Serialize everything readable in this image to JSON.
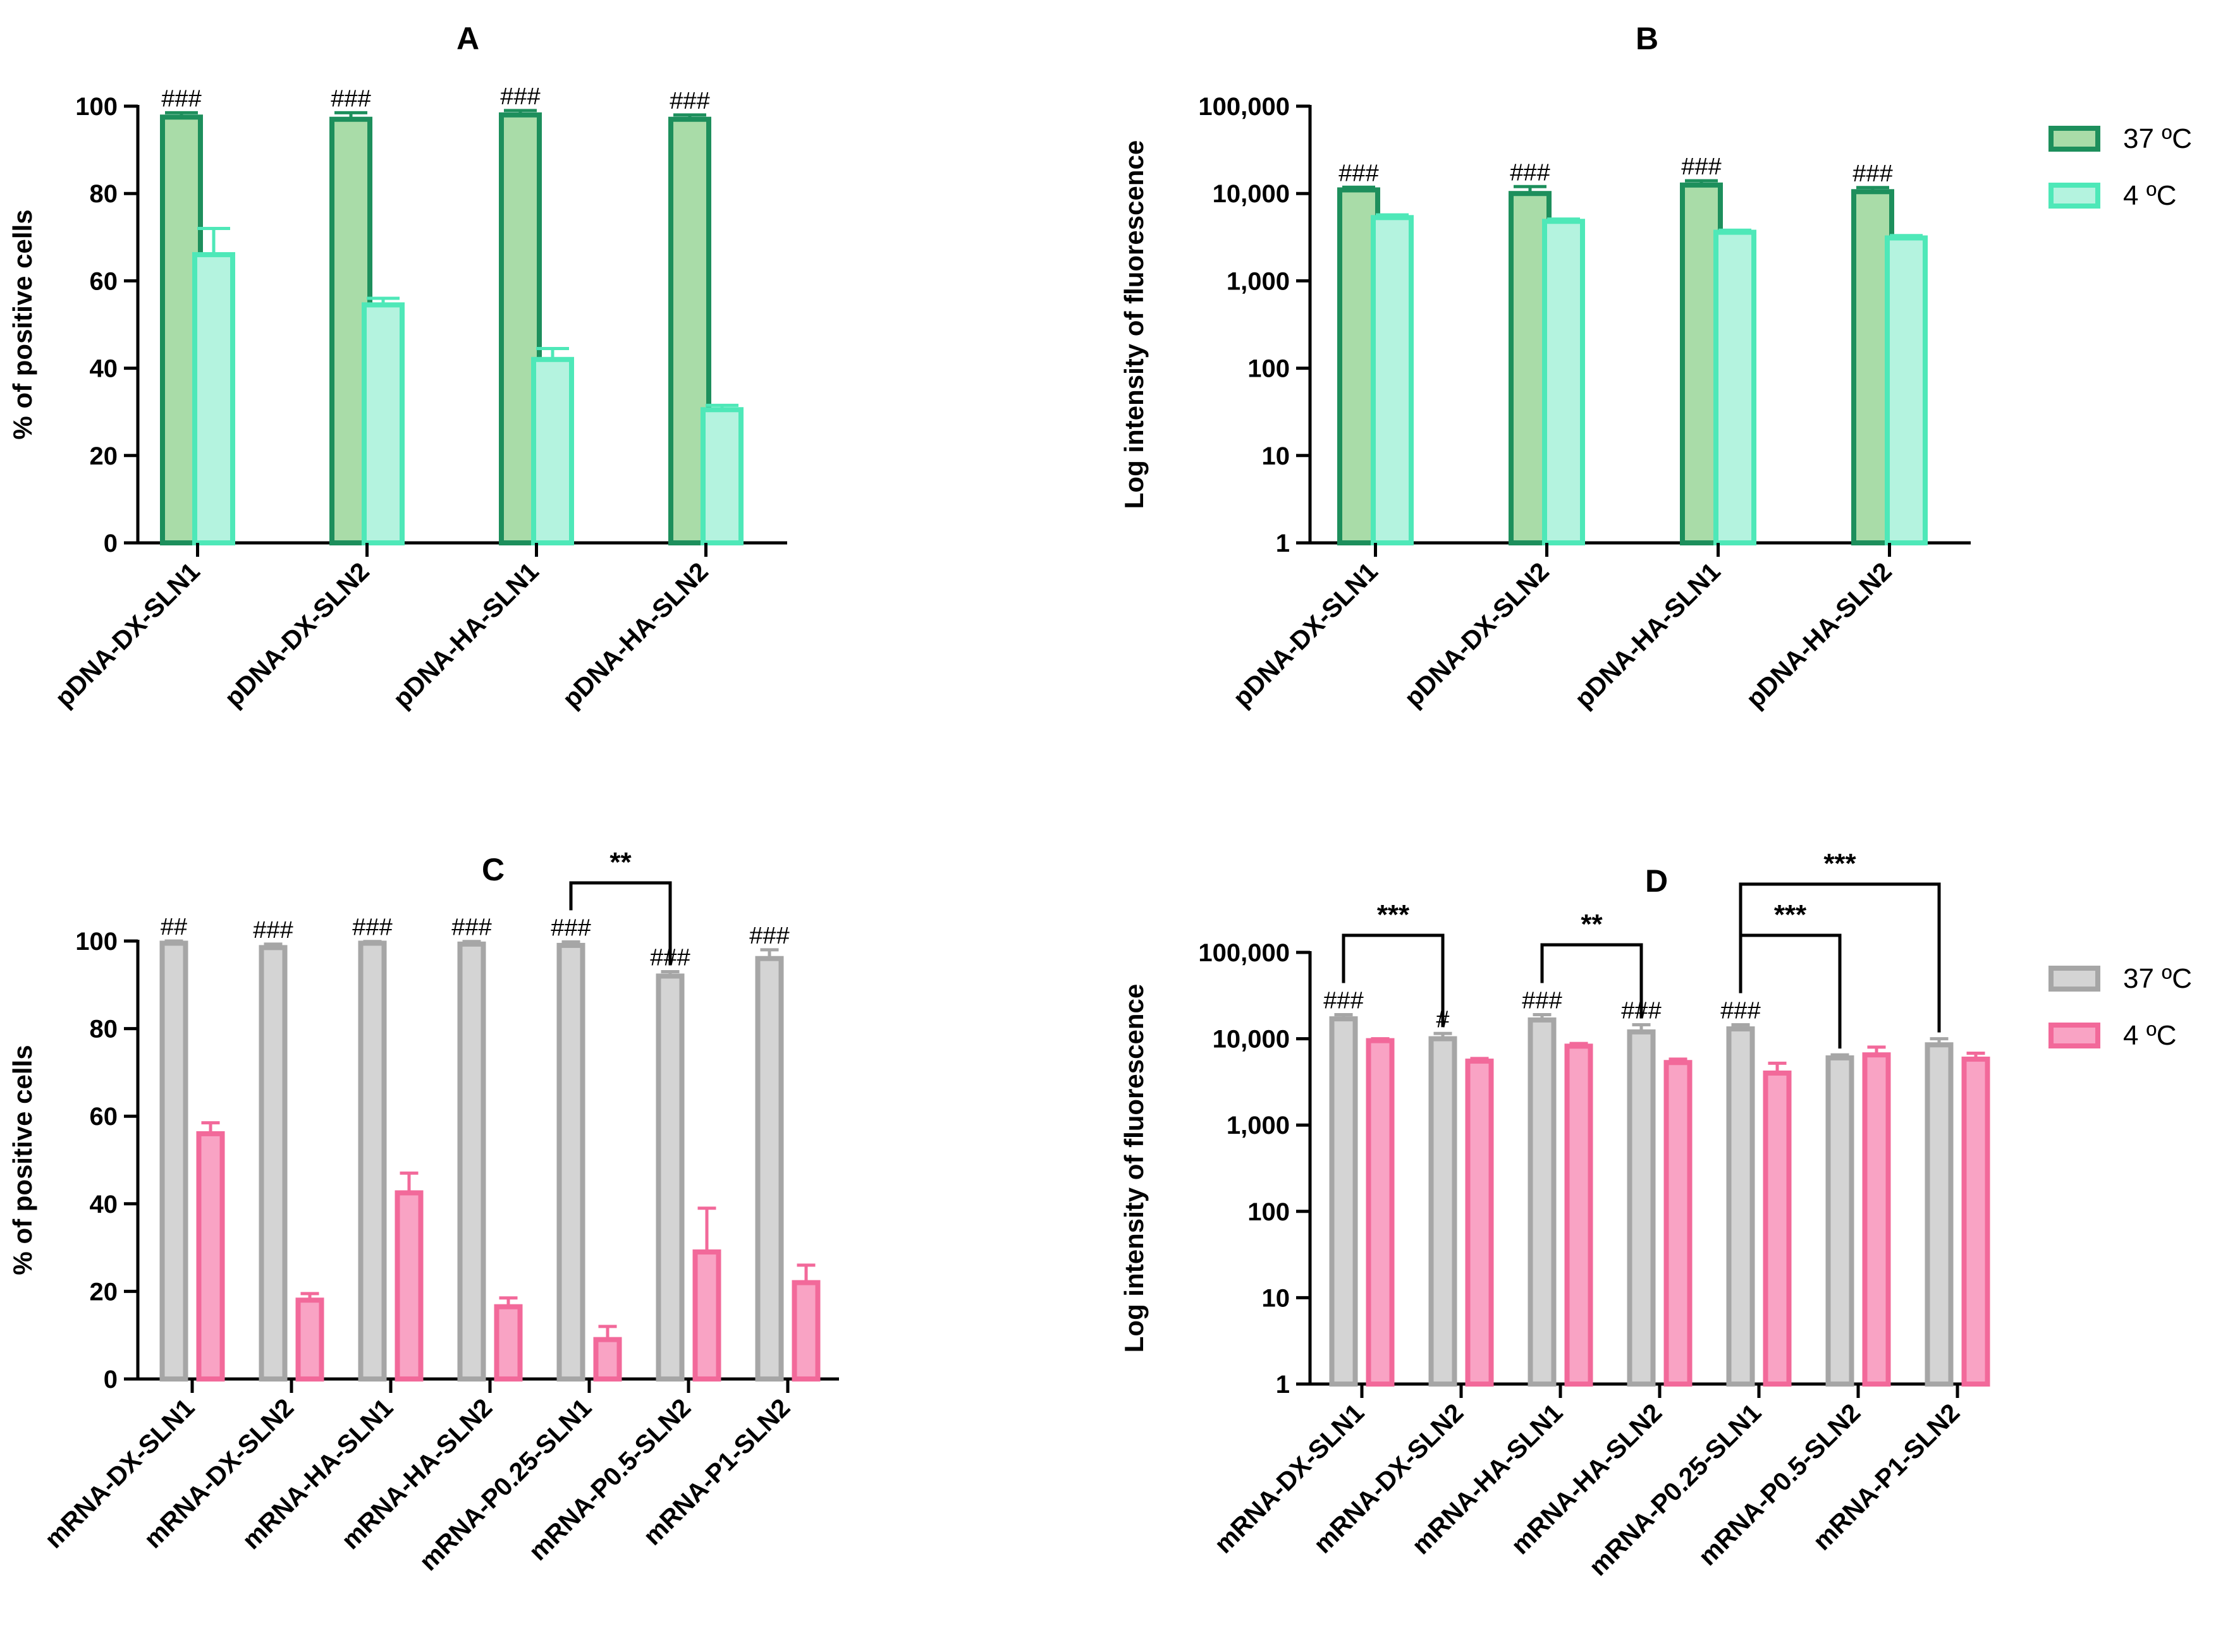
{
  "colors": {
    "green_dark": "#1d8f5c",
    "green_fill": "#a9dca8",
    "mint_stroke": "#4ee8b8",
    "mint_fill": "#b4f3df",
    "grey_stroke": "#a6a6a6",
    "grey_fill": "#d4d4d4",
    "pink_stroke": "#f2699a",
    "pink_fill": "#f9a3c4",
    "axis": "#000000"
  },
  "legends": [
    {
      "for": "B",
      "items": [
        {
          "label": "37 ºC",
          "color_key": "green"
        },
        {
          "label": "4 ºC",
          "color_key": "mint"
        }
      ]
    },
    {
      "for": "D",
      "items": [
        {
          "label": "37 ºC",
          "color_key": "grey"
        },
        {
          "label": "4 ºC",
          "color_key": "pink"
        }
      ]
    }
  ],
  "chart_data": [
    {
      "id": "A",
      "type": "bar",
      "title": "A",
      "ylabel": "% of positive cells",
      "xlabel": "",
      "scale": "linear",
      "ylim": [
        0,
        100
      ],
      "yticks": [
        "0",
        "20",
        "40",
        "60",
        "80",
        "100"
      ],
      "palette": "green",
      "categories": [
        "pDNA-DX-SLN1",
        "pDNA-DX-SLN2",
        "pDNA-HA-SLN1",
        "pDNA-HA-SLN2"
      ],
      "series": [
        {
          "name": "37 ºC",
          "values": [
            97.5,
            97,
            98,
            97
          ],
          "errors": [
            1,
            1.5,
            1,
            1
          ]
        },
        {
          "name": "4 ºC",
          "values": [
            66,
            54.5,
            42,
            30.5
          ],
          "errors": [
            6,
            1.5,
            2.5,
            1
          ]
        }
      ],
      "annotations": [
        {
          "category": 0,
          "series": 0,
          "text": "###"
        },
        {
          "category": 1,
          "series": 0,
          "text": "###"
        },
        {
          "category": 2,
          "series": 0,
          "text": "###"
        },
        {
          "category": 3,
          "series": 0,
          "text": "###"
        }
      ],
      "brackets": []
    },
    {
      "id": "B",
      "type": "bar",
      "title": "B",
      "ylabel": "Log intensity of fluorescence",
      "xlabel": "",
      "scale": "log",
      "ylim": [
        1,
        100000
      ],
      "yticks": [
        "1",
        "10",
        "100",
        "1,000",
        "10,000",
        "100,000"
      ],
      "palette": "green",
      "categories": [
        "pDNA-DX-SLN1",
        "pDNA-DX-SLN2",
        "pDNA-HA-SLN1",
        "pDNA-HA-SLN2"
      ],
      "series": [
        {
          "name": "37 ºC",
          "values": [
            11000,
            10000,
            12500,
            10500
          ],
          "errors": [
            800,
            2000,
            1500,
            1200
          ]
        },
        {
          "name": "4 ºC",
          "values": [
            5300,
            4800,
            3600,
            3100
          ],
          "errors": [
            400,
            300,
            200,
            200
          ]
        }
      ],
      "annotations": [
        {
          "category": 0,
          "series": 0,
          "text": "###"
        },
        {
          "category": 1,
          "series": 0,
          "text": "###"
        },
        {
          "category": 2,
          "series": 0,
          "text": "###"
        },
        {
          "category": 3,
          "series": 0,
          "text": "###"
        }
      ],
      "brackets": []
    },
    {
      "id": "C",
      "type": "bar",
      "title": "C",
      "ylabel": "% of positive cells",
      "xlabel": "",
      "scale": "linear",
      "ylim": [
        0,
        100
      ],
      "yticks": [
        "0",
        "20",
        "40",
        "60",
        "80",
        "100"
      ],
      "palette": "grey",
      "categories": [
        "mRNA-DX-SLN1",
        "mRNA-DX-SLN2",
        "mRNA-HA-SLN1",
        "mRNA-HA-SLN2",
        "mRNA-P0.25-SLN1",
        "mRNA-P0.5-SLN2",
        "mRNA-P1-SLN2"
      ],
      "series": [
        {
          "name": "37 ºC",
          "values": [
            99.5,
            98.5,
            99.5,
            99.3,
            99,
            92,
            96
          ],
          "errors": [
            0.5,
            0.8,
            0.4,
            0.6,
            0.8,
            1,
            2
          ]
        },
        {
          "name": "4 ºC",
          "values": [
            56,
            18,
            42.5,
            16.5,
            9,
            29,
            22
          ],
          "errors": [
            2.5,
            1.5,
            4.5,
            2,
            3,
            10,
            4
          ]
        }
      ],
      "annotations": [
        {
          "category": 0,
          "series": 0,
          "text": "##"
        },
        {
          "category": 1,
          "series": 0,
          "text": "###"
        },
        {
          "category": 2,
          "series": 0,
          "text": "###"
        },
        {
          "category": 3,
          "series": 0,
          "text": "###"
        },
        {
          "category": 4,
          "series": 0,
          "text": "###"
        },
        {
          "category": 5,
          "series": 0,
          "text": "###"
        },
        {
          "category": 6,
          "series": 0,
          "text": "###"
        }
      ],
      "brackets": [
        {
          "from": 4,
          "to": 5,
          "text": "**"
        }
      ]
    },
    {
      "id": "D",
      "type": "bar",
      "title": "D",
      "ylabel": "Log intensity of fluorescence",
      "xlabel": "",
      "scale": "log",
      "ylim": [
        1,
        100000
      ],
      "yticks": [
        "1",
        "10",
        "100",
        "1,000",
        "10,000",
        "100,000"
      ],
      "palette": "grey",
      "categories": [
        "mRNA-DX-SLN1",
        "mRNA-DX-SLN2",
        "mRNA-HA-SLN1",
        "mRNA-HA-SLN2",
        "mRNA-P0.25-SLN1",
        "mRNA-P0.5-SLN2",
        "mRNA-P1-SLN2"
      ],
      "series": [
        {
          "name": "37 ºC",
          "values": [
            17000,
            10000,
            16500,
            12000,
            13000,
            6000,
            8500
          ],
          "errors": [
            2000,
            1500,
            2500,
            2500,
            1500,
            500,
            1500
          ]
        },
        {
          "name": "4 ºC",
          "values": [
            9500,
            5500,
            8200,
            5300,
            4000,
            6500,
            5800
          ],
          "errors": [
            500,
            400,
            600,
            500,
            1200,
            1500,
            1000
          ]
        }
      ],
      "annotations": [
        {
          "category": 0,
          "series": 0,
          "text": "###"
        },
        {
          "category": 1,
          "series": 0,
          "text": "#"
        },
        {
          "category": 2,
          "series": 0,
          "text": "###"
        },
        {
          "category": 3,
          "series": 0,
          "text": "###"
        },
        {
          "category": 4,
          "series": 0,
          "text": "###"
        }
      ],
      "brackets": [
        {
          "from": 0,
          "to": 1,
          "text": "***"
        },
        {
          "from": 2,
          "to": 3,
          "text": "**"
        },
        {
          "from": 4,
          "to": 5,
          "text": "***"
        },
        {
          "from": 4,
          "to": 6,
          "text": "***"
        }
      ]
    }
  ]
}
